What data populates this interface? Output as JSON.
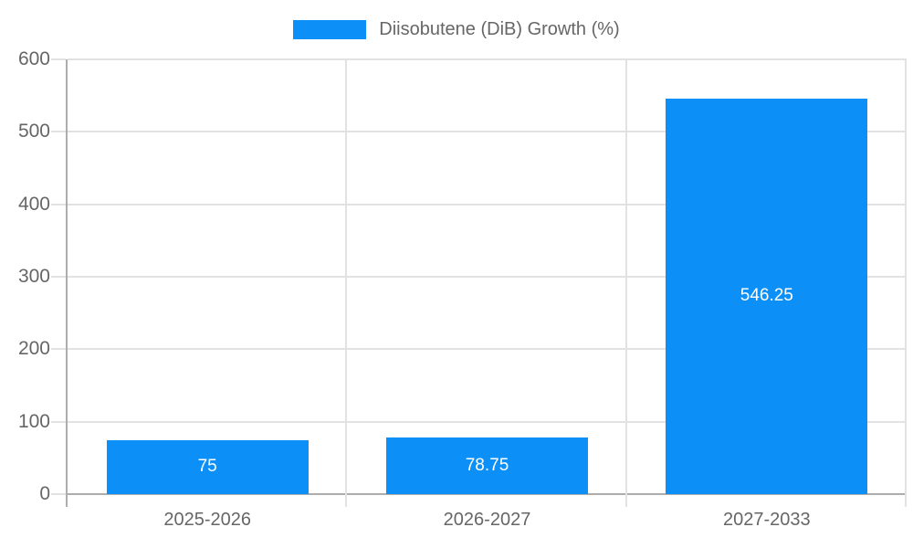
{
  "chart_data": {
    "type": "bar",
    "title": "",
    "xlabel": "",
    "ylabel": "",
    "legend": {
      "label": "Diisobutene (DiB) Growth (%)",
      "position": "top"
    },
    "categories": [
      "2025-2026",
      "2026-2027",
      "2027-2033"
    ],
    "series": [
      {
        "name": "Diisobutene (DiB) Growth (%)",
        "values": [
          75,
          78.75,
          546.25
        ]
      }
    ],
    "value_labels": [
      "75",
      "78.75",
      "546.25"
    ],
    "y_ticks": [
      0,
      100,
      200,
      300,
      400,
      500,
      600
    ],
    "ylim": [
      0,
      600
    ],
    "grid": true,
    "colors": {
      "bar": "#0C90F8",
      "grid": "#E2E2E2",
      "axis": "#ADADAD",
      "tick_text": "#666666",
      "value_text": "#FFFFFF"
    }
  }
}
